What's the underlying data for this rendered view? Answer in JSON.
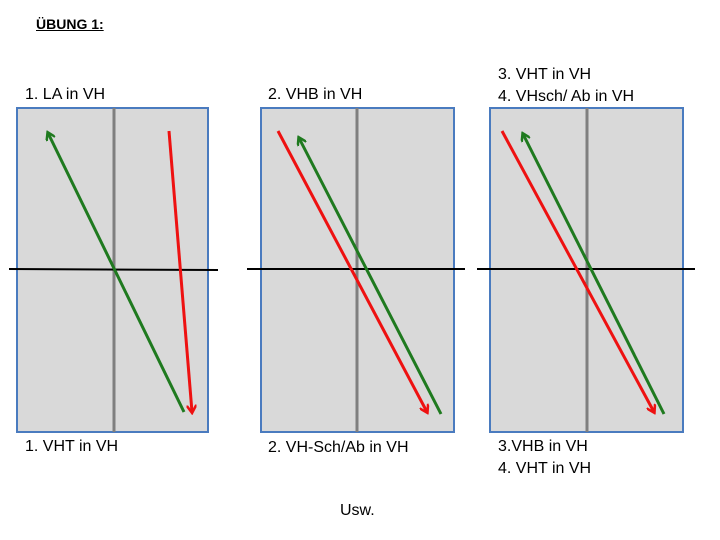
{
  "title": "ÜBUNG 1:",
  "panels": [
    {
      "top_labels": [
        "1. LA in VH"
      ],
      "bottom_labels": [
        "1. VHT in VH"
      ]
    },
    {
      "top_labels": [
        "2. VHB in VH"
      ],
      "bottom_labels": [
        "2. VH-Sch/Ab in VH"
      ]
    },
    {
      "top_labels": [
        "3. VHT in VH",
        "4. VHsch/ Ab in VH"
      ],
      "bottom_labels": [
        "3.VHB in VH",
        "4. VHT in VH"
      ]
    }
  ],
  "footer": "Usw.",
  "colors": {
    "panel_fill": "#d9d9d9",
    "panel_border": "#4a7bbf",
    "divider": "#7f7f7f",
    "axis_line": "#000000",
    "green_arrow": "#1f7a1f",
    "red_arrow": "#ee1111"
  }
}
